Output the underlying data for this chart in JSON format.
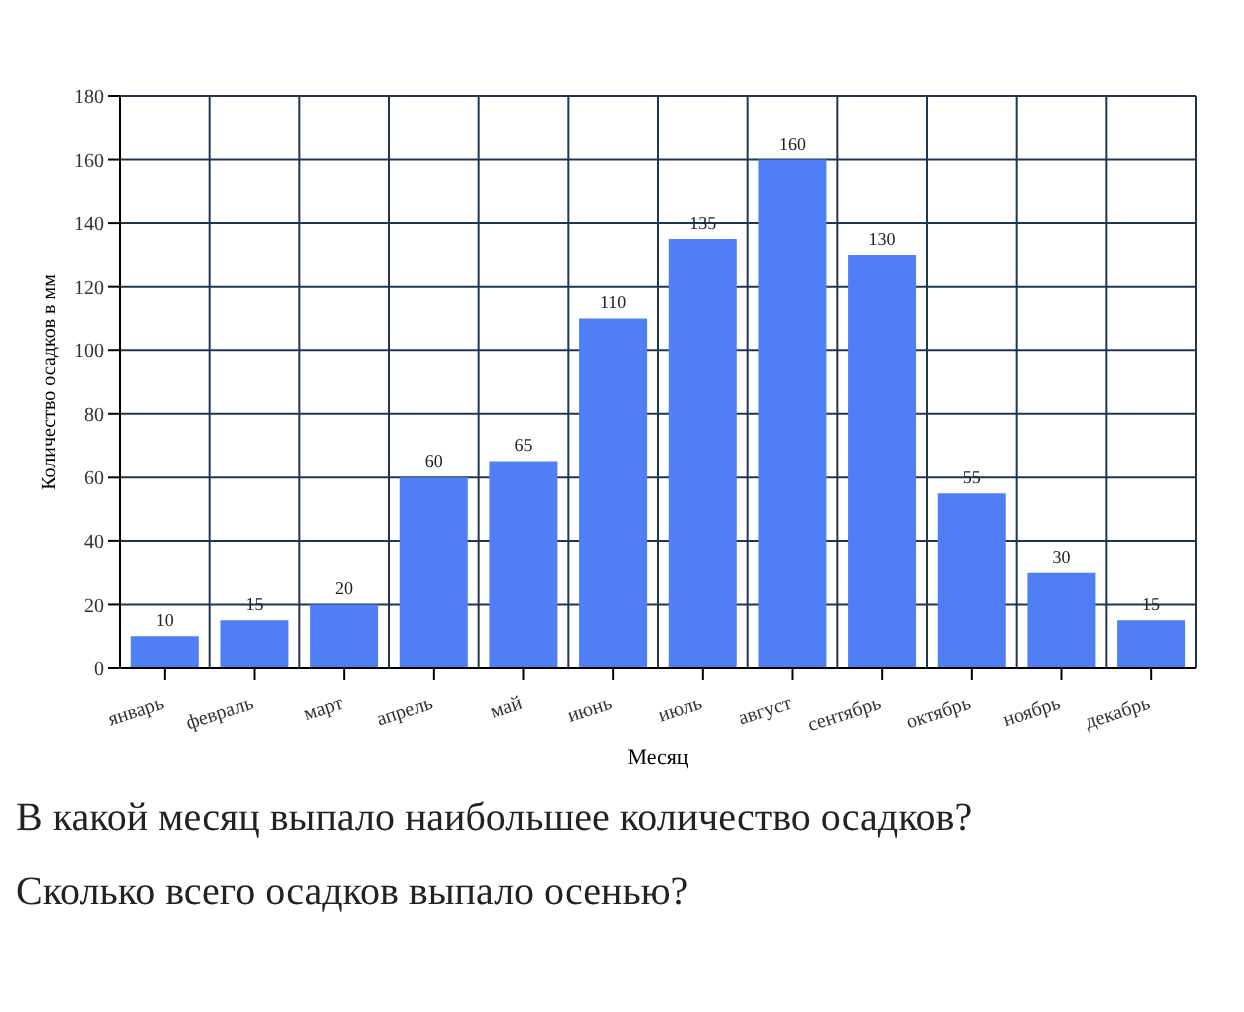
{
  "chart_data": {
    "type": "bar",
    "xlabel": "Месяц",
    "ylabel": "Количество осадков в мм",
    "categories": [
      "январь",
      "февраль",
      "март",
      "апрель",
      "май",
      "июнь",
      "июль",
      "август",
      "сентябрь",
      "октябрь",
      "ноябрь",
      "декабрь"
    ],
    "values": [
      10,
      15,
      20,
      60,
      65,
      110,
      135,
      160,
      130,
      55,
      30,
      15
    ],
    "color": "#4f7ef5",
    "data_labels": true,
    "grid": true,
    "ylim": [
      0,
      180
    ],
    "yticks": [
      0,
      20,
      40,
      60,
      80,
      100,
      120,
      140,
      160,
      180
    ],
    "annotations": [
      "В какой месяц выпало наибольшее количество осадков?",
      "Сколько всего осадков выпало осенью?"
    ]
  }
}
